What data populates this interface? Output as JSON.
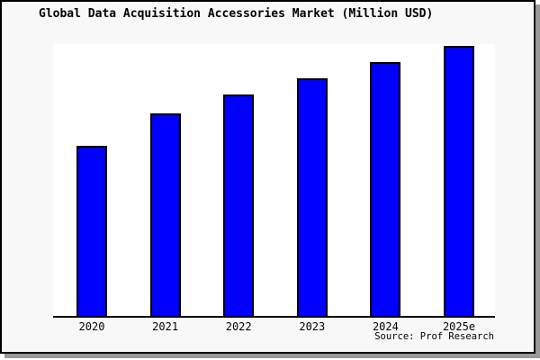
{
  "window": {
    "background_color": "#f8f8f8",
    "border_color": "#000000",
    "shadow_color": "#999999",
    "plot_background_color": "#ffffff"
  },
  "chart": {
    "bar_color": "#0000ff",
    "bar_border_color": "#000000",
    "source_label": "Source: Prof Research"
  },
  "chart_data": {
    "type": "bar",
    "title": "Global Data Acquisition Accessories Market (Million USD)",
    "categories": [
      "2020",
      "2021",
      "2022",
      "2023",
      "2024",
      "2025e"
    ],
    "values": [
      63,
      75,
      82,
      88,
      94,
      100
    ],
    "value_note": "No y-axis or data labels shown; values are relative bar heights normalized to 2025e = 100",
    "xlabel": "",
    "ylabel": "",
    "ylim": [
      0,
      105
    ],
    "grid": false,
    "legend": false,
    "source": "Source: Prof Research"
  }
}
